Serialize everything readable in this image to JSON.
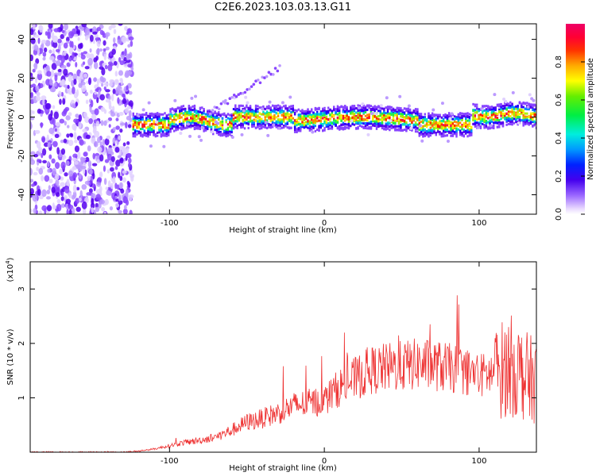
{
  "title": "C2E6.2023.103.03.13.G11",
  "colors": {
    "snr_line": "#ee3333",
    "spectrum_background": "#ffffff"
  },
  "chart_data": [
    {
      "type": "heatmap",
      "xlabel": "Height of straight line (km)",
      "ylabel": "Frequency (Hz)",
      "xlim": [
        -190,
        137
      ],
      "ylim": [
        -50,
        48
      ],
      "xticks": [
        -100,
        0,
        100
      ],
      "xtick_labels": [
        "-100",
        "0",
        "100"
      ],
      "yticks": [
        -40,
        -20,
        0,
        20,
        40
      ],
      "ytick_labels": [
        "-40",
        "-20",
        "0",
        "20",
        "40"
      ],
      "colorbar": {
        "label": "Normalized spectral amplitude",
        "range": [
          0,
          1
        ],
        "ticks": [
          0.0,
          0.2,
          0.4,
          0.6,
          0.8
        ],
        "tick_labels": [
          "0.0",
          "0.2",
          "0.4",
          "0.6",
          "0.8"
        ],
        "colormap": "rainbow"
      },
      "grid": false
    },
    {
      "type": "line",
      "xlabel": "Height of straight line (km)",
      "ylabel": "SNR (10 * v/v)",
      "y_multiplier_label": "(x10",
      "y_multiplier_exp": "4",
      "y_multiplier_close": ")",
      "xlim": [
        -190,
        137
      ],
      "ylim": [
        0,
        3.5
      ],
      "xticks": [
        -100,
        0,
        100
      ],
      "xtick_labels": [
        "-100",
        "0",
        "100"
      ],
      "yticks": [
        1,
        2,
        3
      ],
      "ytick_labels": [
        "1",
        "2",
        "3"
      ],
      "envelope": {
        "x": [
          -190,
          -130,
          -120,
          -110,
          -100,
          -90,
          -80,
          -70,
          -60,
          -50,
          -40,
          -30,
          -20,
          -10,
          0,
          10,
          20,
          30,
          40,
          50,
          60,
          70,
          80,
          90,
          100,
          110,
          120,
          130,
          137
        ],
        "y": [
          0.0,
          0.0,
          0.02,
          0.06,
          0.12,
          0.18,
          0.22,
          0.28,
          0.4,
          0.55,
          0.62,
          0.72,
          0.85,
          0.9,
          0.95,
          1.2,
          1.35,
          1.5,
          1.55,
          1.58,
          1.62,
          1.6,
          1.55,
          1.5,
          1.4,
          1.45,
          1.6,
          1.4,
          1.3
        ]
      },
      "grid": false
    }
  ]
}
